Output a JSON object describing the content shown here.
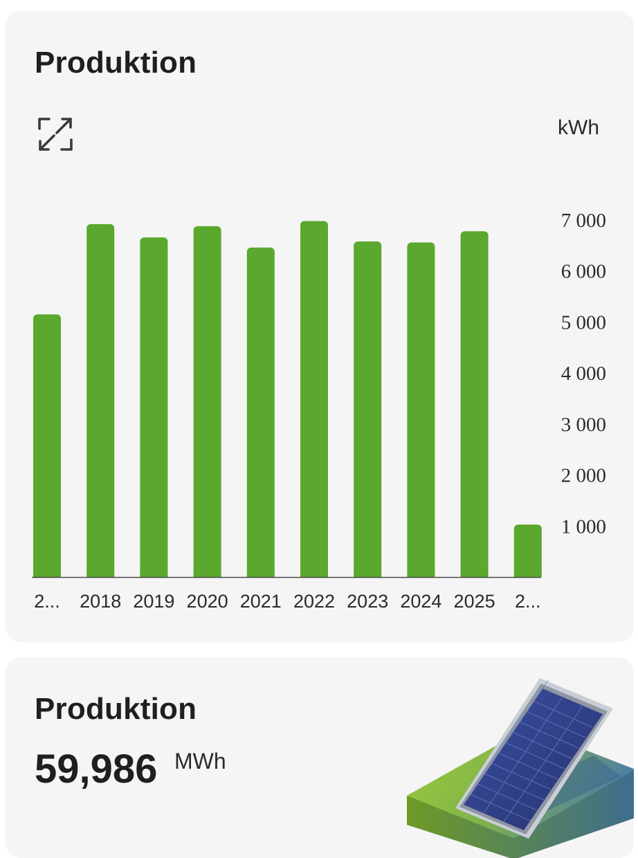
{
  "production_chart": {
    "title": "Produktion",
    "unit": "kWh",
    "expand_icon": "expand-icon"
  },
  "chart_data": {
    "type": "bar",
    "categories": [
      "2...",
      "2018",
      "2019",
      "2020",
      "2021",
      "2022",
      "2023",
      "2024",
      "2025",
      "2..."
    ],
    "values": [
      5150,
      6920,
      6660,
      6880,
      6460,
      6980,
      6580,
      6560,
      6780,
      1030
    ],
    "ylim": [
      0,
      7000
    ],
    "yticks": [
      1000,
      2000,
      3000,
      4000,
      5000,
      6000,
      7000
    ],
    "ytick_labels": [
      "1 000",
      "2 000",
      "3 000",
      "4 000",
      "5 000",
      "6 000",
      "7 000"
    ],
    "ylabel": "kWh",
    "grid": false,
    "bar_color": "#5aa82d"
  },
  "production_total": {
    "title": "Produktion",
    "value": "59,986",
    "unit": "MWh",
    "illustration": "solar-panel-icon"
  },
  "colors": {
    "card_bg": "#f5f5f5",
    "bar": "#5aa82d",
    "text": "#1f1f1f"
  }
}
